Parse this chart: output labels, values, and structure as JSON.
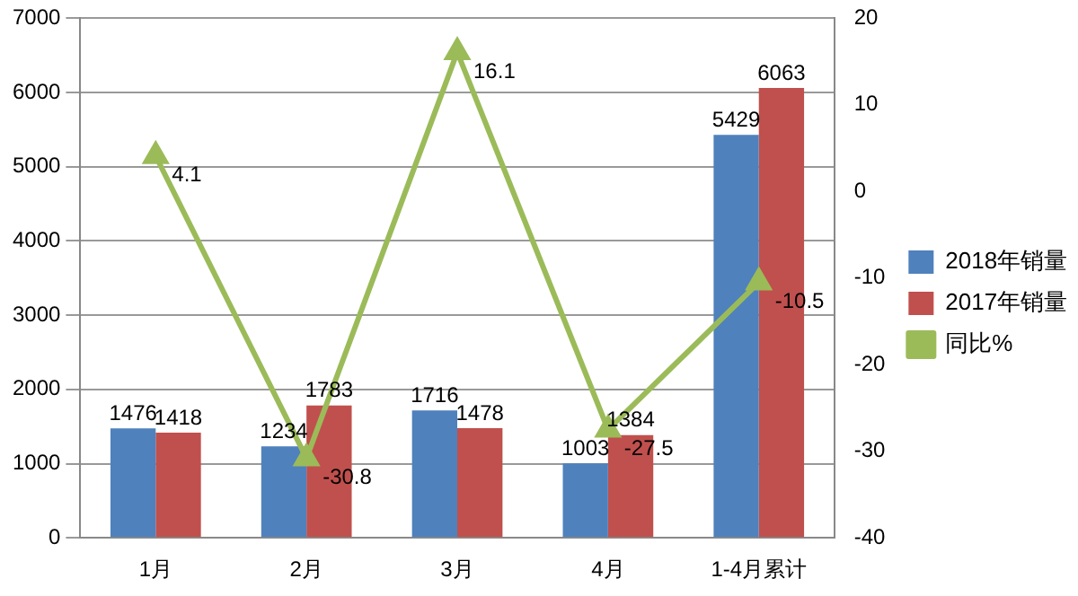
{
  "chart_data": {
    "type": "bar",
    "categories": [
      "1月",
      "2月",
      "3月",
      "4月",
      "1-4月累计"
    ],
    "series": [
      {
        "name": "2018年销量",
        "color": "#4f81bd",
        "values": [
          1476,
          1234,
          1716,
          1003,
          5429
        ]
      },
      {
        "name": "2017年销量",
        "color": "#c0504d",
        "values": [
          1418,
          1783,
          1478,
          1384,
          6063
        ]
      },
      {
        "name": "同比%",
        "type": "line",
        "axis": "y2",
        "color": "#9bbb59",
        "marker": "triangle",
        "values": [
          4.1,
          -30.8,
          16.1,
          -27.5,
          -10.5
        ]
      }
    ],
    "ylim": [
      0,
      7000
    ],
    "yticks": [
      0,
      1000,
      2000,
      3000,
      4000,
      5000,
      6000,
      7000
    ],
    "y2lim": [
      -40,
      20
    ],
    "y2ticks": [
      -40,
      -30,
      -20,
      -10,
      0,
      10,
      20
    ],
    "grid": "y",
    "legend": "right",
    "data_labels": true
  }
}
